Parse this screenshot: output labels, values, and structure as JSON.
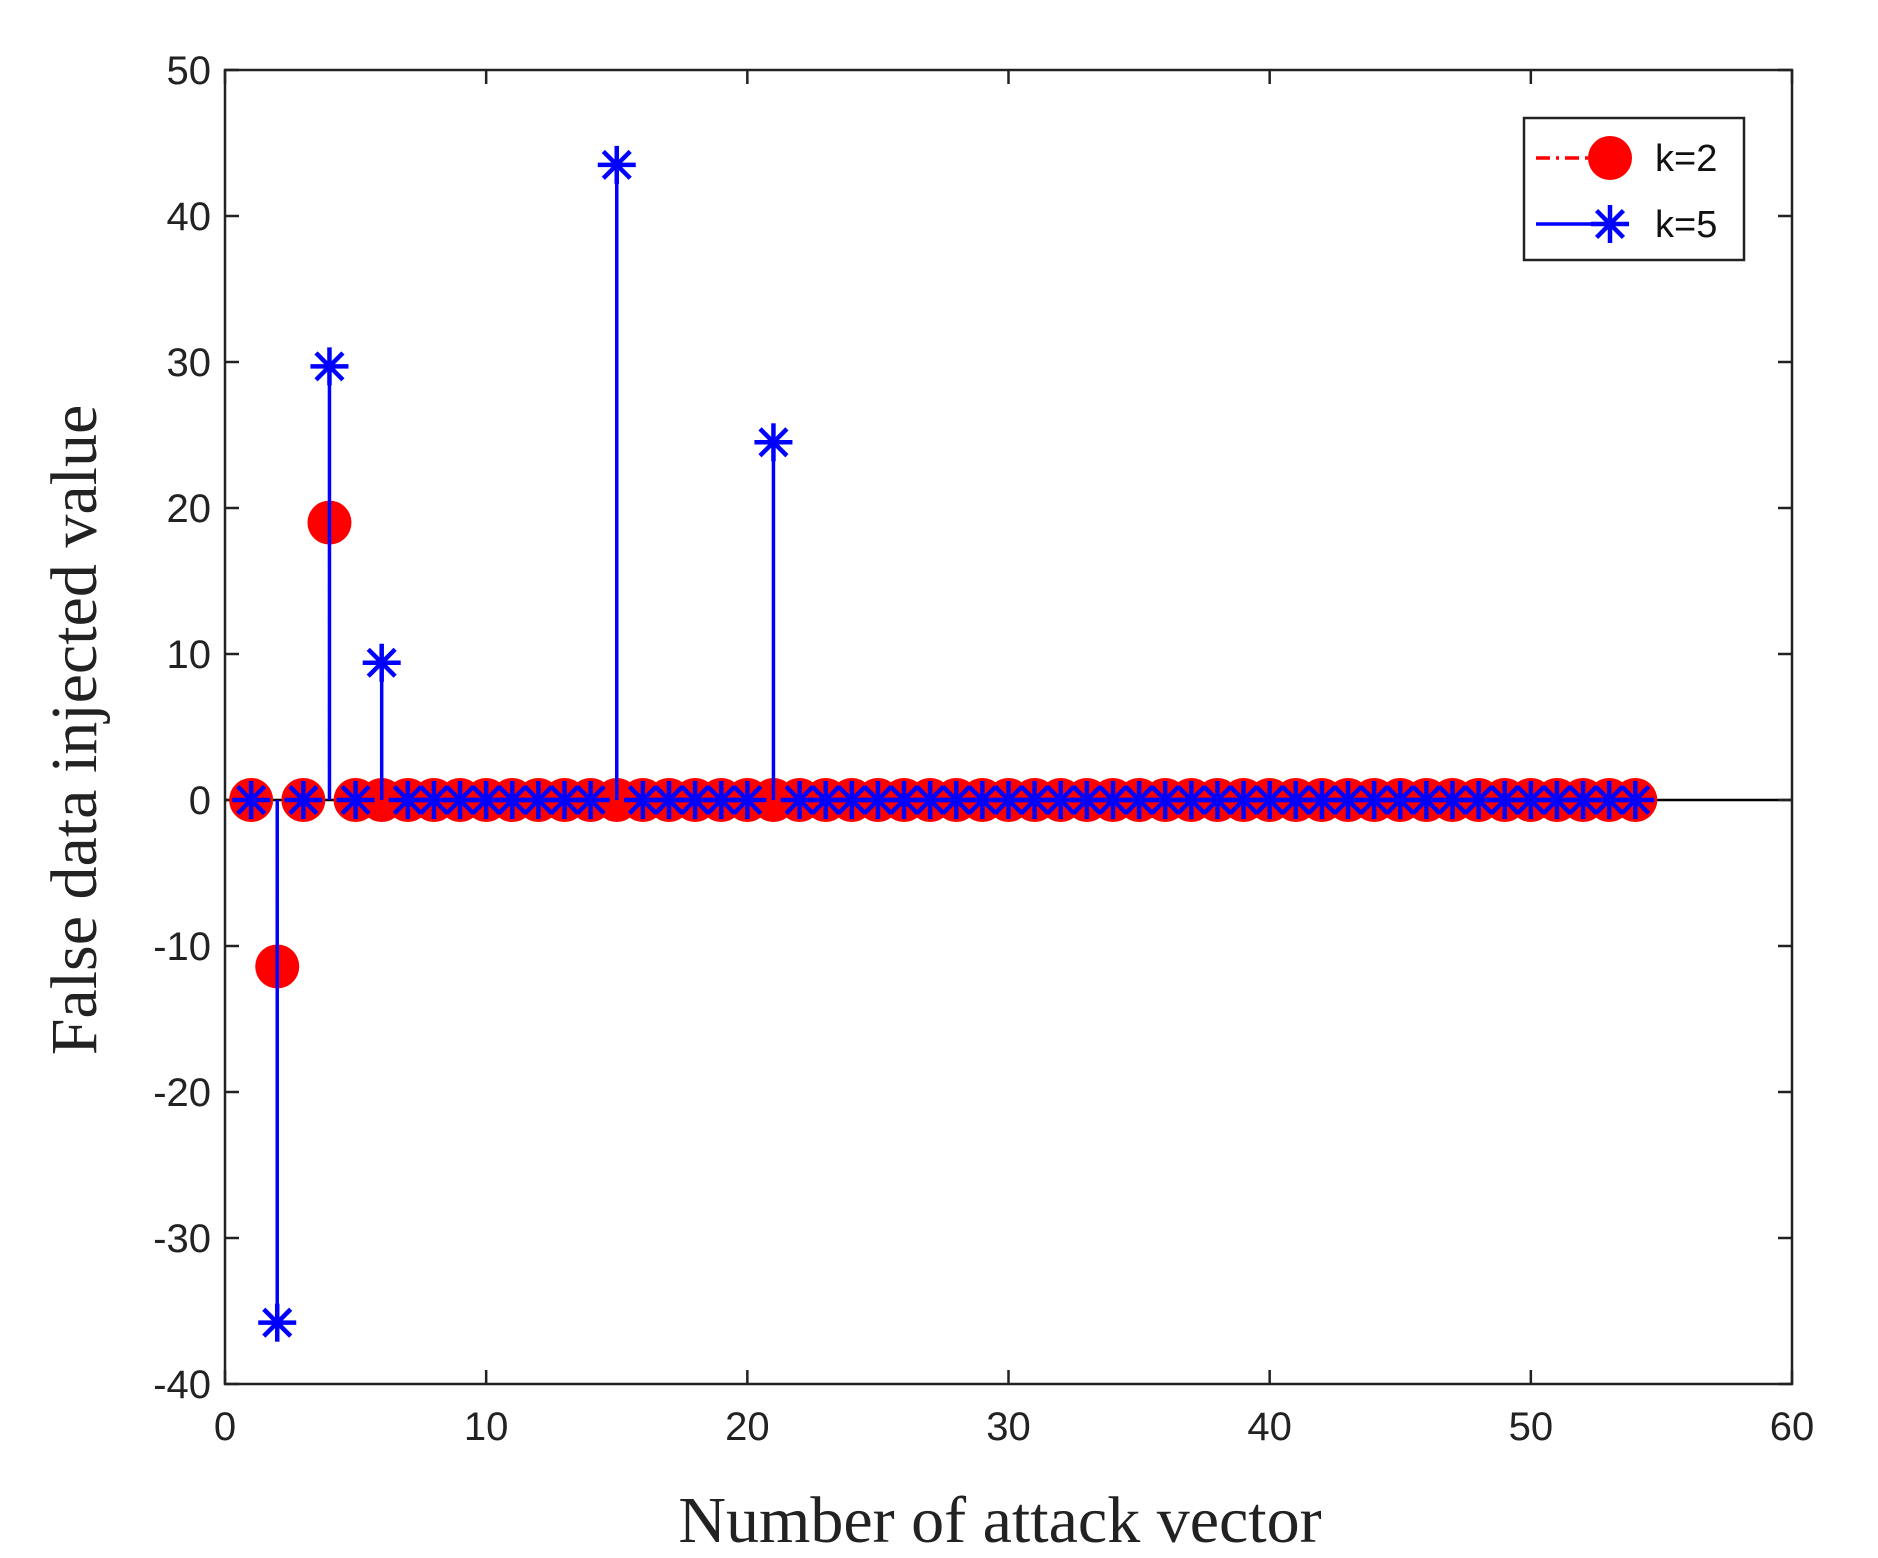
{
  "chart_data": {
    "type": "stem",
    "xlabel": "Number of attack vector",
    "ylabel": "False data injected value",
    "xlim": [
      0,
      60
    ],
    "ylim": [
      -40,
      50
    ],
    "xticks": [
      0,
      10,
      20,
      30,
      40,
      50,
      60
    ],
    "yticks": [
      -40,
      -30,
      -20,
      -10,
      0,
      10,
      20,
      30,
      40,
      50
    ],
    "grid": false,
    "legend_position": "top-right",
    "series": [
      {
        "name": "k=2",
        "color": "#ff0000",
        "marker": "filled-circle",
        "line_style": "dash-dot",
        "x": [
          1,
          2,
          3,
          4,
          5,
          6,
          7,
          8,
          9,
          10,
          11,
          12,
          13,
          14,
          15,
          16,
          17,
          18,
          19,
          20,
          21,
          22,
          23,
          24,
          25,
          26,
          27,
          28,
          29,
          30,
          31,
          32,
          33,
          34,
          35,
          36,
          37,
          38,
          39,
          40,
          41,
          42,
          43,
          44,
          45,
          46,
          47,
          48,
          49,
          50,
          51,
          52,
          53,
          54
        ],
        "values": [
          0,
          -11.4,
          0,
          19,
          0,
          0,
          0,
          0,
          0,
          0,
          0,
          0,
          0,
          0,
          0,
          0,
          0,
          0,
          0,
          0,
          0,
          0,
          0,
          0,
          0,
          0,
          0,
          0,
          0,
          0,
          0,
          0,
          0,
          0,
          0,
          0,
          0,
          0,
          0,
          0,
          0,
          0,
          0,
          0,
          0,
          0,
          0,
          0,
          0,
          0,
          0,
          0,
          0,
          0
        ]
      },
      {
        "name": "k=5",
        "color": "#0000ff",
        "marker": "asterisk",
        "line_style": "solid",
        "x": [
          1,
          2,
          3,
          4,
          5,
          6,
          7,
          8,
          9,
          10,
          11,
          12,
          13,
          14,
          15,
          16,
          17,
          18,
          19,
          20,
          21,
          22,
          23,
          24,
          25,
          26,
          27,
          28,
          29,
          30,
          31,
          32,
          33,
          34,
          35,
          36,
          37,
          38,
          39,
          40,
          41,
          42,
          43,
          44,
          45,
          46,
          47,
          48,
          49,
          50,
          51,
          52,
          53,
          54
        ],
        "values": [
          0,
          -35.8,
          0,
          29.7,
          0,
          9.4,
          0,
          0,
          0,
          0,
          0,
          0,
          0,
          0,
          43.5,
          0,
          0,
          0,
          0,
          0,
          24.5,
          0,
          0,
          0,
          0,
          0,
          0,
          0,
          0,
          0,
          0,
          0,
          0,
          0,
          0,
          0,
          0,
          0,
          0,
          0,
          0,
          0,
          0,
          0,
          0,
          0,
          0,
          0,
          0,
          0,
          0,
          0,
          0,
          0
        ]
      }
    ]
  }
}
